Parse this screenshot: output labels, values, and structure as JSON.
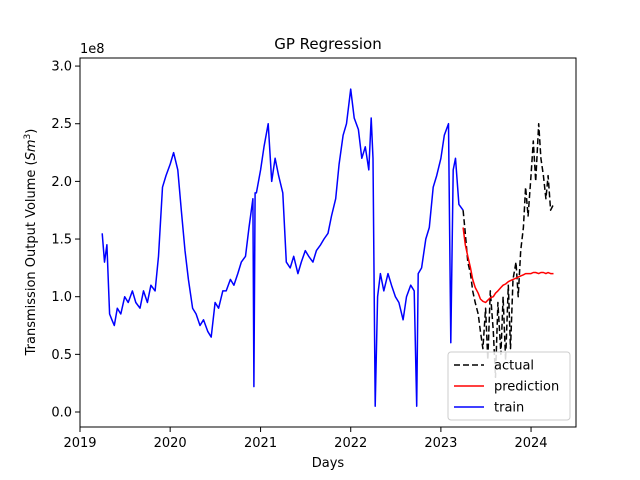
{
  "chart_data": {
    "type": "line",
    "title": "GP Regression",
    "xlabel": "Days",
    "ylabel": "Transmission Output Volume (Sm³)",
    "y_offset_text": "1e8",
    "y_scale_multiplier": 100000000,
    "xlim": [
      "2019-01-01",
      "2024-07-01"
    ],
    "ylim": [
      -0.13,
      3.07
    ],
    "x_ticks": [
      "2019",
      "2020",
      "2021",
      "2022",
      "2023",
      "2024"
    ],
    "y_ticks": [
      "0.0",
      "0.5",
      "1.0",
      "1.5",
      "2.0",
      "2.5",
      "3.0"
    ],
    "grid": false,
    "legend_position": "lower right",
    "series": [
      {
        "name": "actual",
        "color": "#000000",
        "style": "dashed",
        "x": [
          "2023-04-01",
          "2023-04-10",
          "2023-04-20",
          "2023-05-01",
          "2023-05-10",
          "2023-05-20",
          "2023-06-01",
          "2023-06-10",
          "2023-06-20",
          "2023-07-01",
          "2023-07-10",
          "2023-07-20",
          "2023-08-01",
          "2023-08-10",
          "2023-08-20",
          "2023-09-01",
          "2023-09-10",
          "2023-09-20",
          "2023-10-01",
          "2023-10-10",
          "2023-10-20",
          "2023-11-01",
          "2023-11-10",
          "2023-11-20",
          "2023-12-01",
          "2023-12-10",
          "2023-12-20",
          "2024-01-01",
          "2024-01-10",
          "2024-01-20",
          "2024-02-01",
          "2024-02-10",
          "2024-02-20",
          "2024-03-01",
          "2024-03-10",
          "2024-03-20",
          "2024-04-01"
        ],
        "values": [
          1.75,
          1.55,
          1.3,
          1.2,
          1.05,
          0.95,
          0.85,
          0.7,
          0.55,
          0.9,
          0.45,
          1.05,
          0.7,
          0.3,
          0.95,
          0.5,
          1.0,
          0.45,
          1.1,
          0.55,
          1.15,
          1.3,
          1.0,
          1.4,
          1.6,
          1.95,
          1.7,
          2.05,
          2.35,
          2.0,
          2.5,
          2.2,
          2.05,
          1.85,
          2.05,
          1.75,
          1.8
        ]
      },
      {
        "name": "prediction",
        "color": "#ff0000",
        "style": "solid",
        "x": [
          "2023-04-01",
          "2023-04-10",
          "2023-04-20",
          "2023-05-01",
          "2023-05-10",
          "2023-05-20",
          "2023-06-01",
          "2023-06-10",
          "2023-06-20",
          "2023-07-01",
          "2023-07-10",
          "2023-07-20",
          "2023-08-01",
          "2023-08-10",
          "2023-08-20",
          "2023-09-01",
          "2023-09-10",
          "2023-09-20",
          "2023-10-01",
          "2023-10-10",
          "2023-10-20",
          "2023-11-01",
          "2023-11-10",
          "2023-11-20",
          "2023-12-01",
          "2023-12-10",
          "2023-12-20",
          "2024-01-01",
          "2024-01-10",
          "2024-01-20",
          "2024-02-01",
          "2024-02-10",
          "2024-02-20",
          "2024-03-01",
          "2024-03-10",
          "2024-03-20",
          "2024-04-01"
        ],
        "values": [
          1.6,
          1.45,
          1.35,
          1.25,
          1.15,
          1.08,
          1.03,
          0.98,
          0.96,
          0.95,
          0.97,
          0.99,
          1.0,
          1.03,
          1.05,
          1.08,
          1.1,
          1.11,
          1.13,
          1.14,
          1.15,
          1.16,
          1.17,
          1.18,
          1.19,
          1.2,
          1.2,
          1.2,
          1.21,
          1.21,
          1.2,
          1.21,
          1.21,
          1.2,
          1.21,
          1.2,
          1.2
        ]
      },
      {
        "name": "train",
        "color": "#0000ff",
        "style": "solid",
        "x": [
          "2019-04-01",
          "2019-04-10",
          "2019-04-20",
          "2019-05-01",
          "2019-05-10",
          "2019-05-20",
          "2019-06-01",
          "2019-06-15",
          "2019-07-01",
          "2019-07-15",
          "2019-08-01",
          "2019-08-15",
          "2019-09-01",
          "2019-09-15",
          "2019-10-01",
          "2019-10-15",
          "2019-11-01",
          "2019-11-15",
          "2019-12-01",
          "2019-12-15",
          "2020-01-01",
          "2020-01-15",
          "2020-02-01",
          "2020-02-15",
          "2020-03-01",
          "2020-03-15",
          "2020-04-01",
          "2020-04-15",
          "2020-05-01",
          "2020-05-15",
          "2020-06-01",
          "2020-06-15",
          "2020-07-01",
          "2020-07-15",
          "2020-08-01",
          "2020-08-15",
          "2020-09-01",
          "2020-09-15",
          "2020-10-01",
          "2020-10-15",
          "2020-11-01",
          "2020-11-15",
          "2020-12-01",
          "2020-12-05",
          "2020-12-10",
          "2020-12-15",
          "2021-01-01",
          "2021-01-15",
          "2021-02-01",
          "2021-02-15",
          "2021-03-01",
          "2021-03-15",
          "2021-04-01",
          "2021-04-15",
          "2021-05-01",
          "2021-05-15",
          "2021-06-01",
          "2021-06-15",
          "2021-07-01",
          "2021-07-15",
          "2021-08-01",
          "2021-08-15",
          "2021-09-01",
          "2021-09-15",
          "2021-10-01",
          "2021-10-15",
          "2021-11-01",
          "2021-11-15",
          "2021-12-01",
          "2021-12-15",
          "2022-01-01",
          "2022-01-15",
          "2022-02-01",
          "2022-02-15",
          "2022-03-01",
          "2022-03-15",
          "2022-03-25",
          "2022-04-01",
          "2022-04-10",
          "2022-04-20",
          "2022-05-01",
          "2022-05-15",
          "2022-06-01",
          "2022-06-15",
          "2022-07-01",
          "2022-07-15",
          "2022-08-01",
          "2022-08-15",
          "2022-09-01",
          "2022-09-15",
          "2022-09-25",
          "2022-10-01",
          "2022-10-15",
          "2022-11-01",
          "2022-11-15",
          "2022-12-01",
          "2022-12-15",
          "2023-01-01",
          "2023-01-15",
          "2023-02-01",
          "2023-02-10",
          "2023-02-20",
          "2023-03-01",
          "2023-03-15",
          "2023-04-01"
        ],
        "values": [
          1.55,
          1.3,
          1.45,
          0.85,
          0.8,
          0.75,
          0.9,
          0.85,
          1.0,
          0.95,
          1.05,
          0.95,
          0.9,
          1.05,
          0.95,
          1.1,
          1.05,
          1.35,
          1.95,
          2.05,
          2.15,
          2.25,
          2.1,
          1.75,
          1.4,
          1.15,
          0.9,
          0.85,
          0.75,
          0.8,
          0.7,
          0.65,
          0.95,
          0.9,
          1.05,
          1.05,
          1.15,
          1.1,
          1.2,
          1.3,
          1.35,
          1.6,
          1.85,
          0.22,
          1.9,
          1.9,
          2.1,
          2.3,
          2.5,
          2.0,
          2.2,
          2.05,
          1.9,
          1.3,
          1.25,
          1.35,
          1.2,
          1.3,
          1.4,
          1.35,
          1.3,
          1.4,
          1.45,
          1.5,
          1.55,
          1.7,
          1.85,
          2.15,
          2.4,
          2.5,
          2.8,
          2.55,
          2.45,
          2.2,
          2.3,
          2.1,
          2.55,
          2.2,
          0.05,
          1.0,
          1.2,
          1.05,
          1.2,
          1.1,
          1.0,
          0.95,
          0.8,
          1.0,
          1.1,
          1.05,
          0.05,
          1.2,
          1.25,
          1.5,
          1.6,
          1.95,
          2.05,
          2.2,
          2.4,
          2.5,
          0.6,
          2.1,
          2.2,
          1.8,
          1.75
        ]
      }
    ]
  }
}
